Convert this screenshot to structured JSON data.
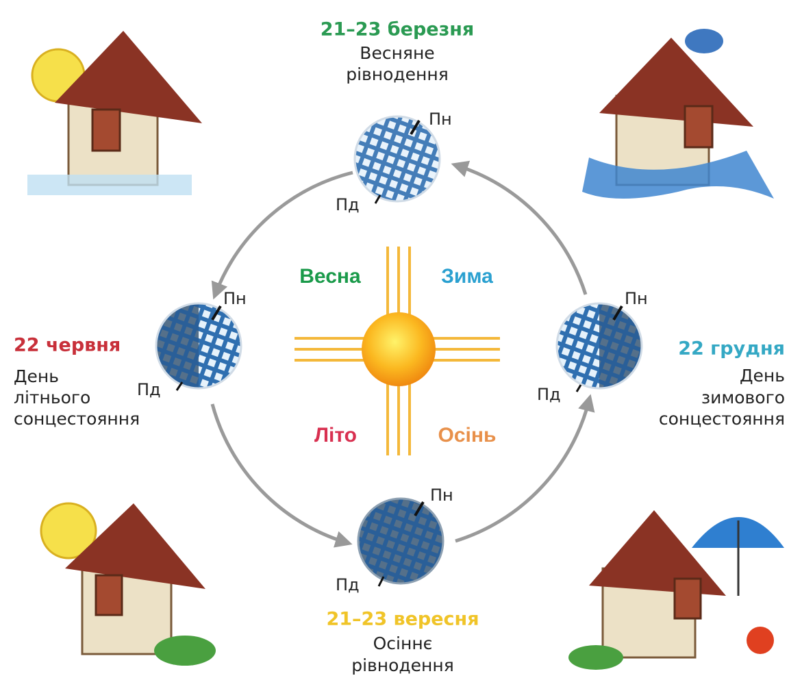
{
  "positions": [
    {
      "date": "21–23 березня",
      "name_lines": [
        "Весняне",
        "рівнодення"
      ],
      "north": "Пн",
      "south": "Пд"
    },
    {
      "date": "22 червня",
      "name_lines": [
        "День",
        "літнього",
        "сонцестояння"
      ],
      "north": "Пн",
      "south": "Пд"
    },
    {
      "date": "22 грудня",
      "name_lines": [
        "День",
        "зимового",
        "сонцестояння"
      ],
      "north": "Пн",
      "south": "Пд"
    },
    {
      "date": "21–23 вересня",
      "name_lines": [
        "Осіннє",
        "рівнодення"
      ],
      "north": "Пн",
      "south": "Пд"
    }
  ],
  "seasons": [
    "Весна",
    "Зима",
    "Літо",
    "Осінь"
  ]
}
